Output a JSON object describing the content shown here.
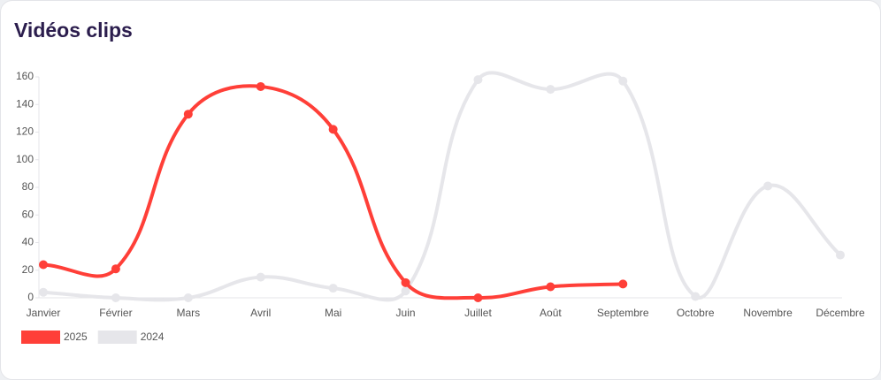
{
  "chart_data": {
    "type": "line",
    "title": "Vidéos clips",
    "categories": [
      "Janvier",
      "Février",
      "Mars",
      "Avril",
      "Mai",
      "Juin",
      "Juillet",
      "Août",
      "Septembre",
      "Octobre",
      "Novembre",
      "Décembre"
    ],
    "series": [
      {
        "name": "2025",
        "color": "#ff3f38",
        "values": [
          24,
          21,
          133,
          153,
          122,
          11,
          0,
          8,
          10,
          null,
          null,
          null
        ]
      },
      {
        "name": "2024",
        "color": "#e6e6ea",
        "values": [
          4,
          0,
          0,
          15,
          7,
          5,
          158,
          151,
          157,
          1,
          81,
          31
        ]
      }
    ],
    "ylim": [
      0,
      160
    ],
    "yticks": [
      0,
      20,
      40,
      60,
      80,
      100,
      120,
      140,
      160
    ],
    "grid": false,
    "legend": "bottom-left"
  }
}
